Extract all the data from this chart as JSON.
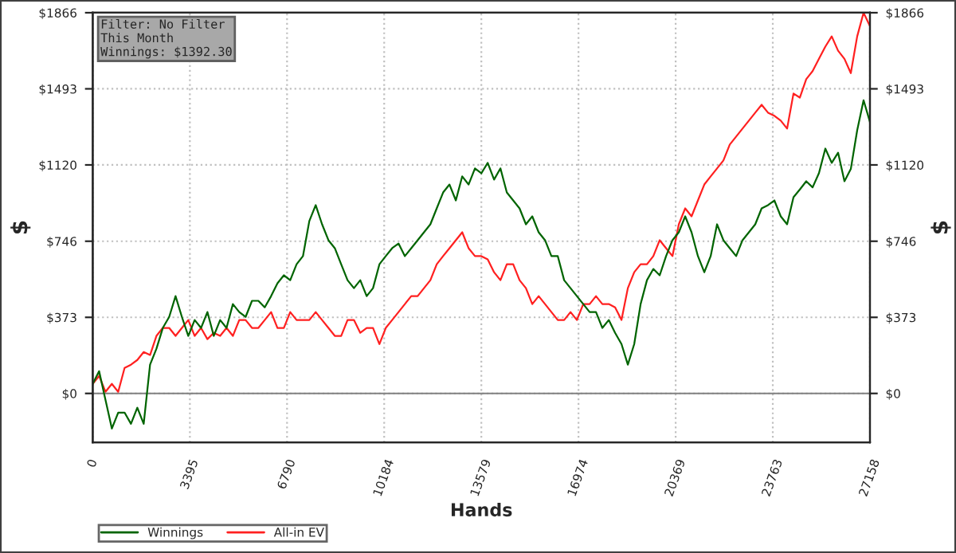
{
  "chart_data": {
    "type": "line",
    "xlabel": "Hands",
    "ylabel": "$",
    "y2label": "$",
    "annotations": [
      "Filter: No Filter\nThis Month\nWinnings: $1392.30"
    ],
    "x": [
      0,
      223,
      445,
      668,
      890,
      1113,
      1336,
      1558,
      1781,
      2003,
      2226,
      2449,
      2671,
      2894,
      3116,
      3339,
      3562,
      3784,
      4007,
      4229,
      4452,
      4675,
      4897,
      5120,
      5342,
      5565,
      5788,
      6010,
      6233,
      6455,
      6678,
      6901,
      7123,
      7346,
      7568,
      7791,
      8014,
      8236,
      8459,
      8681,
      8904,
      9127,
      9349,
      9572,
      9794,
      10017,
      10240,
      10462,
      10685,
      10907,
      11130,
      11353,
      11575,
      11798,
      12020,
      12243,
      12466,
      12688,
      12911,
      13133,
      13356,
      13579,
      13801,
      14024,
      14246,
      14469,
      14692,
      14914,
      15137,
      15359,
      15582,
      15805,
      16027,
      16250,
      16472,
      16695,
      16918,
      17140,
      17363,
      17585,
      17808,
      18031,
      18253,
      18476,
      18698,
      18921,
      19144,
      19366,
      19589,
      19811,
      20034,
      20257,
      20479,
      20702,
      20924,
      21147,
      21370,
      21592,
      21815,
      22037,
      22260,
      22483,
      22705,
      22928,
      23150,
      23373,
      23596,
      23818,
      24041,
      24263,
      24486,
      24709,
      24931,
      25154,
      25376,
      25599,
      25822,
      26044,
      26267,
      26489,
      26712,
      26935,
      27158
    ],
    "series": [
      {
        "name": "Winnings",
        "color": "#006400",
        "values": [
          47,
          109,
          -31,
          -172,
          -94,
          -94,
          -149,
          -70,
          -149,
          141,
          219,
          321,
          375,
          477,
          375,
          282,
          360,
          321,
          399,
          282,
          360,
          321,
          438,
          399,
          375,
          454,
          454,
          422,
          477,
          540,
          579,
          555,
          633,
          673,
          845,
          923,
          829,
          751,
          712,
          633,
          555,
          516,
          555,
          477,
          516,
          633,
          673,
          712,
          735,
          673,
          712,
          751,
          790,
          829,
          907,
          985,
          1024,
          946,
          1064,
          1024,
          1103,
          1079,
          1130,
          1048,
          1103,
          985,
          946,
          907,
          829,
          868,
          790,
          751,
          673,
          673,
          555,
          516,
          477,
          438,
          399,
          399,
          321,
          360,
          297,
          242,
          141,
          242,
          438,
          555,
          610,
          579,
          673,
          751,
          790,
          868,
          790,
          673,
          594,
          673,
          829,
          751,
          712,
          673,
          751,
          790,
          829,
          907,
          923,
          946,
          868,
          829,
          962,
          1000,
          1040,
          1010,
          1080,
          1200,
          1130,
          1180,
          1040,
          1100,
          1290,
          1437,
          1330
        ]
      },
      {
        "name": "All-in EV",
        "color": "#ff2020",
        "values": [
          47,
          86,
          8,
          47,
          8,
          125,
          141,
          164,
          203,
          188,
          282,
          321,
          321,
          282,
          321,
          360,
          282,
          321,
          266,
          297,
          282,
          321,
          282,
          360,
          360,
          321,
          321,
          360,
          399,
          321,
          321,
          399,
          360,
          360,
          360,
          399,
          360,
          321,
          282,
          282,
          360,
          360,
          297,
          321,
          321,
          242,
          321,
          360,
          399,
          438,
          477,
          477,
          516,
          555,
          633,
          673,
          712,
          751,
          790,
          712,
          673,
          673,
          657,
          594,
          555,
          633,
          633,
          555,
          516,
          438,
          477,
          438,
          399,
          360,
          360,
          399,
          360,
          438,
          438,
          477,
          438,
          438,
          422,
          360,
          516,
          594,
          633,
          633,
          673,
          751,
          712,
          673,
          829,
          907,
          868,
          946,
          1024,
          1064,
          1103,
          1142,
          1220,
          1259,
          1298,
          1337,
          1376,
          1415,
          1376,
          1361,
          1337,
          1298,
          1470,
          1450,
          1540,
          1580,
          1640,
          1700,
          1750,
          1680,
          1640,
          1570,
          1750,
          1866,
          1800
        ]
      }
    ],
    "xlim": [
      0,
      27158
    ],
    "xticks": [
      0,
      3395,
      6790,
      10184,
      13579,
      16974,
      20369,
      23763,
      27158
    ],
    "ylim": [
      -240,
      1866
    ],
    "yticks": [
      {
        "value": 0,
        "label": "$0"
      },
      {
        "value": 373,
        "label": "$373"
      },
      {
        "value": 746,
        "label": "$746"
      },
      {
        "value": 1120,
        "label": "$1120"
      },
      {
        "value": 1493,
        "label": "$1493"
      },
      {
        "value": 1866,
        "label": "$1866"
      }
    ],
    "y2lim": [
      -240,
      1866
    ],
    "y2ticks": [
      {
        "value": 0,
        "label": "$0"
      },
      {
        "value": 373,
        "label": "$373"
      },
      {
        "value": 746,
        "label": "$746"
      },
      {
        "value": 1120,
        "label": "$1120"
      },
      {
        "value": 1493,
        "label": "$1493"
      },
      {
        "value": 1866,
        "label": "$1866"
      }
    ],
    "ref_lines": [
      {
        "axis": "y",
        "value": 0,
        "color": "#808080"
      }
    ],
    "grid": true,
    "legend": "bottom left",
    "marker": "none",
    "line_style": "solid"
  }
}
